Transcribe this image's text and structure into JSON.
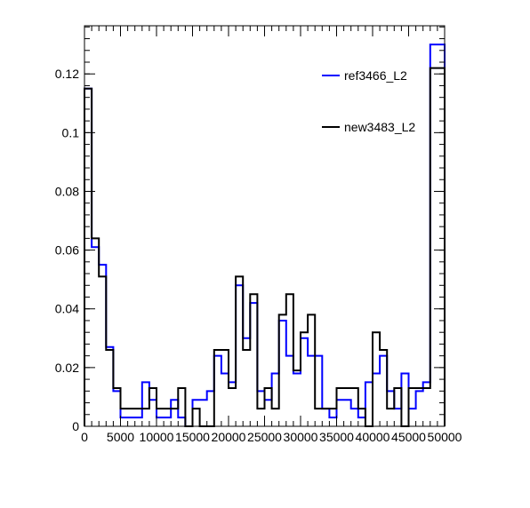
{
  "chart_data": {
    "type": "step",
    "bin_width": 1000,
    "xlim": [
      0,
      50000
    ],
    "ylim": [
      0,
      0.1364
    ],
    "x_ticks": [
      0,
      5000,
      10000,
      15000,
      20000,
      25000,
      30000,
      35000,
      40000,
      45000,
      50000
    ],
    "x_tick_labels": [
      "0",
      "5000",
      "10000",
      "15000",
      "20000",
      "25000",
      "30000",
      "35000",
      "40000",
      "45000",
      "50000"
    ],
    "y_ticks": [
      0,
      0.02,
      0.04,
      0.06,
      0.08,
      0.1,
      0.12
    ],
    "y_tick_labels": [
      "0",
      "0.02",
      "0.04",
      "0.06",
      "0.08",
      "0.1",
      "0.12"
    ],
    "legend_position": "top-right",
    "series": [
      {
        "name": "ref3466_L2",
        "color": "#0000ff",
        "values": [
          0.115,
          0.061,
          0.055,
          0.027,
          0.012,
          0.003,
          0.003,
          0.003,
          0.015,
          0.009,
          0.003,
          0.003,
          0.009,
          0.003,
          0.0,
          0.009,
          0.009,
          0.012,
          0.024,
          0.018,
          0.015,
          0.048,
          0.03,
          0.042,
          0.012,
          0.009,
          0.018,
          0.036,
          0.024,
          0.018,
          0.03,
          0.024,
          0.024,
          0.006,
          0.003,
          0.009,
          0.009,
          0.006,
          0.003,
          0.015,
          0.018,
          0.024,
          0.012,
          0.006,
          0.018,
          0.006,
          0.012,
          0.015,
          0.13,
          0.13
        ]
      },
      {
        "name": "new3483_L2",
        "color": "#000000",
        "values": [
          0.115,
          0.064,
          0.051,
          0.026,
          0.013,
          0.006,
          0.006,
          0.006,
          0.006,
          0.013,
          0.006,
          0.006,
          0.006,
          0.013,
          0.0,
          0.006,
          0.0,
          0.0,
          0.026,
          0.026,
          0.013,
          0.051,
          0.026,
          0.045,
          0.006,
          0.013,
          0.006,
          0.038,
          0.045,
          0.019,
          0.032,
          0.038,
          0.006,
          0.006,
          0.006,
          0.013,
          0.013,
          0.013,
          0.006,
          0.0,
          0.032,
          0.026,
          0.006,
          0.013,
          0.0,
          0.013,
          0.013,
          0.013,
          0.122,
          0.122
        ]
      }
    ]
  }
}
